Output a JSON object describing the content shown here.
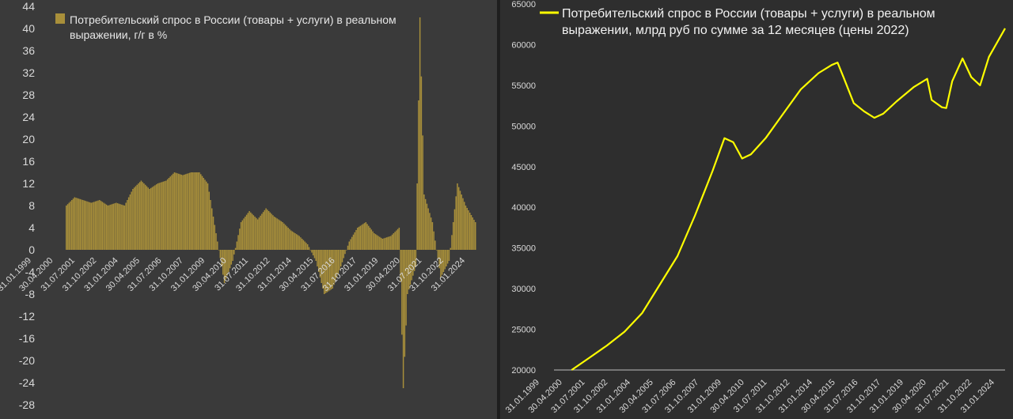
{
  "chart_data": [
    {
      "type": "bar",
      "title": "",
      "legend": {
        "entries": [
          "Потребительский спрос в России (товары + услуги) в реальном выражении, г/г в %"
        ],
        "lines": [
          "Потребительский спрос в России (товары + услуги) в реальном",
          "выражении, г/г в %"
        ]
      },
      "color": "#a88f3a",
      "ylim": [
        -28,
        44
      ],
      "yticks": [
        44,
        40,
        36,
        32,
        28,
        24,
        20,
        16,
        12,
        8,
        4,
        0,
        -4,
        -8,
        -12,
        -16,
        -20,
        -24,
        -28
      ],
      "xticks": [
        "31.01.1999",
        "30.04.2000",
        "31.07.2001",
        "31.10.2002",
        "31.01.2004",
        "30.04.2005",
        "31.07.2006",
        "31.10.2007",
        "31.01.2009",
        "30.04.2010",
        "31.07.2011",
        "31.10.2012",
        "31.01.2014",
        "30.04.2015",
        "31.07.2016",
        "31.10.2017",
        "31.01.2019",
        "30.04.2020",
        "31.07.2021",
        "31.10.2022",
        "31.01.2024"
      ],
      "x_start": "1999-01",
      "x_end": "2024-08",
      "series": [
        {
          "values": [
            {
              "x": "2000-01",
              "y": 8
            },
            {
              "x": "2000-07",
              "y": 9.5
            },
            {
              "x": "2001-01",
              "y": 9
            },
            {
              "x": "2001-07",
              "y": 8.5
            },
            {
              "x": "2002-01",
              "y": 9
            },
            {
              "x": "2002-07",
              "y": 8
            },
            {
              "x": "2003-01",
              "y": 8.5
            },
            {
              "x": "2003-07",
              "y": 8
            },
            {
              "x": "2004-01",
              "y": 11
            },
            {
              "x": "2004-07",
              "y": 12.5
            },
            {
              "x": "2005-01",
              "y": 11
            },
            {
              "x": "2005-07",
              "y": 12
            },
            {
              "x": "2006-01",
              "y": 12.5
            },
            {
              "x": "2006-07",
              "y": 14
            },
            {
              "x": "2007-01",
              "y": 13.5
            },
            {
              "x": "2007-07",
              "y": 14
            },
            {
              "x": "2008-01",
              "y": 14
            },
            {
              "x": "2008-07",
              "y": 12
            },
            {
              "x": "2009-01",
              "y": 3
            },
            {
              "x": "2009-07",
              "y": -6
            },
            {
              "x": "2010-01",
              "y": -2
            },
            {
              "x": "2010-07",
              "y": 5
            },
            {
              "x": "2011-01",
              "y": 7
            },
            {
              "x": "2011-07",
              "y": 5.5
            },
            {
              "x": "2012-01",
              "y": 7.5
            },
            {
              "x": "2012-07",
              "y": 6
            },
            {
              "x": "2013-01",
              "y": 5
            },
            {
              "x": "2013-07",
              "y": 3.5
            },
            {
              "x": "2014-01",
              "y": 2.5
            },
            {
              "x": "2014-07",
              "y": 1
            },
            {
              "x": "2015-01",
              "y": -2
            },
            {
              "x": "2015-07",
              "y": -8
            },
            {
              "x": "2016-01",
              "y": -7
            },
            {
              "x": "2016-07",
              "y": -3
            },
            {
              "x": "2017-01",
              "y": 1.5
            },
            {
              "x": "2017-07",
              "y": 4
            },
            {
              "x": "2018-01",
              "y": 5
            },
            {
              "x": "2018-07",
              "y": 3
            },
            {
              "x": "2019-01",
              "y": 2
            },
            {
              "x": "2019-07",
              "y": 2.5
            },
            {
              "x": "2020-01",
              "y": 4
            },
            {
              "x": "2020-04",
              "y": -25
            },
            {
              "x": "2020-07",
              "y": -8
            },
            {
              "x": "2021-01",
              "y": -3
            },
            {
              "x": "2021-04",
              "y": 42
            },
            {
              "x": "2021-07",
              "y": 10
            },
            {
              "x": "2022-01",
              "y": 5
            },
            {
              "x": "2022-07",
              "y": -5
            },
            {
              "x": "2023-01",
              "y": -2
            },
            {
              "x": "2023-07",
              "y": 12
            },
            {
              "x": "2024-01",
              "y": 8
            },
            {
              "x": "2024-08",
              "y": 5
            }
          ]
        }
      ]
    },
    {
      "type": "line",
      "title": "",
      "legend": {
        "entries": [
          "Потребительский спрос в России (товары + услуги) в реальном выражении, млрд руб по сумме за 12 месяцев (цены 2022)"
        ],
        "lines": [
          "Потребительский спрос в России (товары + услуги) в реальном",
          "выражении, млрд руб по сумме за 12 месяцев (цены 2022)"
        ]
      },
      "color": "#ffff00",
      "ylim": [
        20000,
        65000
      ],
      "yticks": [
        65000,
        60000,
        55000,
        50000,
        45000,
        40000,
        35000,
        30000,
        25000,
        20000
      ],
      "xticks": [
        "31.01.1999",
        "30.04.2000",
        "31.07.2001",
        "31.10.2002",
        "31.01.2004",
        "30.04.2005",
        "31.07.2006",
        "31.10.2007",
        "31.01.2009",
        "30.04.2010",
        "31.07.2011",
        "31.10.2012",
        "31.01.2014",
        "30.04.2015",
        "31.07.2016",
        "31.10.2017",
        "31.01.2019",
        "30.04.2020",
        "31.07.2021",
        "31.10.2022",
        "31.01.2024"
      ],
      "x_start": "1999-01",
      "x_end": "2024-08",
      "series": [
        {
          "values": [
            {
              "x": "2000-01",
              "y": 20000
            },
            {
              "x": "2001-01",
              "y": 21500
            },
            {
              "x": "2002-01",
              "y": 23000
            },
            {
              "x": "2003-01",
              "y": 24700
            },
            {
              "x": "2004-01",
              "y": 27000
            },
            {
              "x": "2005-01",
              "y": 30500
            },
            {
              "x": "2006-01",
              "y": 34000
            },
            {
              "x": "2007-01",
              "y": 39000
            },
            {
              "x": "2008-01",
              "y": 44500
            },
            {
              "x": "2008-09",
              "y": 48500
            },
            {
              "x": "2009-03",
              "y": 48000
            },
            {
              "x": "2009-09",
              "y": 46000
            },
            {
              "x": "2010-03",
              "y": 46500
            },
            {
              "x": "2011-01",
              "y": 48500
            },
            {
              "x": "2012-01",
              "y": 51500
            },
            {
              "x": "2013-01",
              "y": 54500
            },
            {
              "x": "2014-01",
              "y": 56500
            },
            {
              "x": "2014-10",
              "y": 57500
            },
            {
              "x": "2015-02",
              "y": 57800
            },
            {
              "x": "2015-06",
              "y": 56000
            },
            {
              "x": "2016-01",
              "y": 52800
            },
            {
              "x": "2016-08",
              "y": 51800
            },
            {
              "x": "2017-03",
              "y": 51000
            },
            {
              "x": "2017-09",
              "y": 51500
            },
            {
              "x": "2018-06",
              "y": 53000
            },
            {
              "x": "2019-06",
              "y": 54800
            },
            {
              "x": "2020-03",
              "y": 55800
            },
            {
              "x": "2020-06",
              "y": 53200
            },
            {
              "x": "2021-01",
              "y": 52300
            },
            {
              "x": "2021-04",
              "y": 52200
            },
            {
              "x": "2021-08",
              "y": 55500
            },
            {
              "x": "2022-03",
              "y": 58300
            },
            {
              "x": "2022-09",
              "y": 56000
            },
            {
              "x": "2023-03",
              "y": 55000
            },
            {
              "x": "2023-09",
              "y": 58500
            },
            {
              "x": "2024-08",
              "y": 62000
            }
          ]
        }
      ]
    }
  ]
}
